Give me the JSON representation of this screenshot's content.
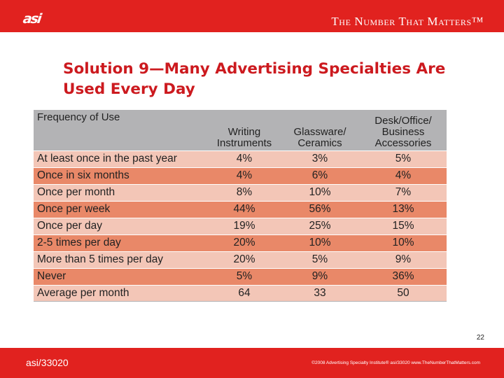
{
  "header": {
    "logo_text": "asi",
    "tagline": "The Number That Matters™"
  },
  "slide": {
    "title": "Solution 9—Many Advertising Specialties Are Used Every Day",
    "page_number": "22"
  },
  "table": {
    "corner_label": "Frequency of Use",
    "columns": [
      {
        "line1": "Writing",
        "line2": "Instruments"
      },
      {
        "line1": "Glassware/",
        "line2": "Ceramics"
      },
      {
        "line1": "Desk/Office/",
        "line2": "Business",
        "line3": "Accessories"
      }
    ],
    "rows": [
      {
        "label": "At least once in the past year",
        "values": [
          "4%",
          "3%",
          "5%"
        ]
      },
      {
        "label": "Once in six months",
        "values": [
          "4%",
          "6%",
          "4%"
        ]
      },
      {
        "label": "Once per month",
        "values": [
          "8%",
          "10%",
          "7%"
        ]
      },
      {
        "label": "Once per week",
        "values": [
          "44%",
          "56%",
          "13%"
        ]
      },
      {
        "label": "Once per day",
        "values": [
          "19%",
          "25%",
          "15%"
        ]
      },
      {
        "label": "2-5 times per day",
        "values": [
          "20%",
          "10%",
          "10%"
        ]
      },
      {
        "label": "More than 5 times per day",
        "values": [
          "20%",
          "5%",
          "9%"
        ]
      },
      {
        "label": "Never",
        "values": [
          "5%",
          "9%",
          "36%"
        ]
      },
      {
        "label": "Average per month",
        "values": [
          "64",
          "33",
          "50"
        ]
      }
    ]
  },
  "footer": {
    "code": "asi/33020",
    "copyright": "©2008 Advertising Specialty Institute® asi/33020   www.TheNumberThatMatters.com"
  },
  "colors": {
    "brand_red": "#e1221f",
    "title_red": "#cc1a1f",
    "row_light": "#f3c6b7",
    "row_dark": "#e98868",
    "header_gray": "#b3b3b5"
  }
}
